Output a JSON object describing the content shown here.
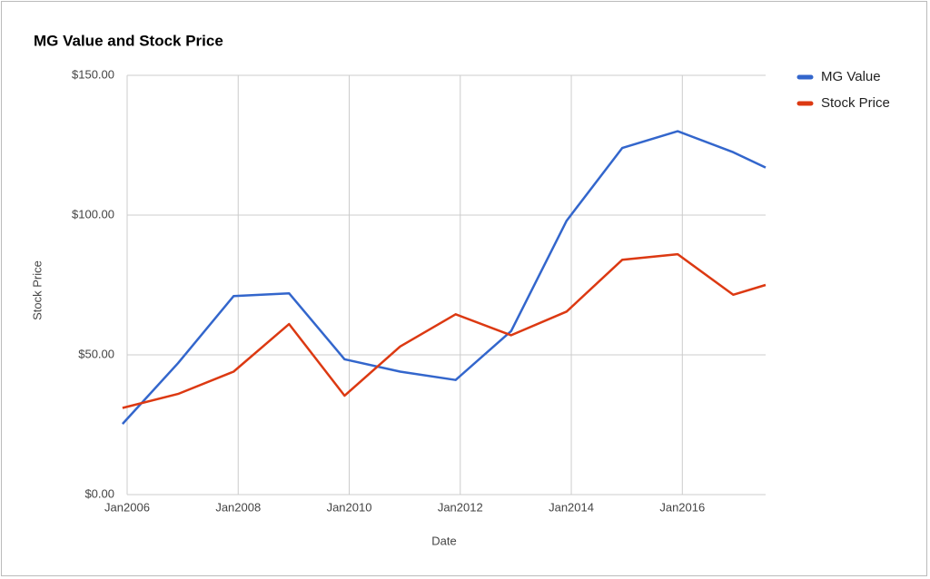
{
  "chart_data": {
    "type": "line",
    "title": "MG Value and Stock Price",
    "x_label": "Date",
    "y_label": "Stock Price",
    "x": [
      "2005-12",
      "2006-12",
      "2007-12",
      "2008-12",
      "2009-12",
      "2010-12",
      "2011-12",
      "2012-12",
      "2013-12",
      "2014-12",
      "2015-12",
      "2016-12",
      "2017-07"
    ],
    "series": [
      {
        "name": "MG Value",
        "color": "#3366cc",
        "values": [
          25.3,
          47,
          71,
          72,
          48.4,
          44,
          41,
          58.5,
          98,
          124,
          130,
          122.5,
          117
        ]
      },
      {
        "name": "Stock Price",
        "color": "#dc3912",
        "values": [
          31,
          36,
          44,
          61,
          35.4,
          53,
          64.5,
          57,
          65.5,
          84,
          86,
          71.5,
          75
        ]
      }
    ],
    "xlim": [
      "2006-01",
      "2017-07"
    ],
    "xticks": [
      {
        "value": "2006-01",
        "label": "Jan2006"
      },
      {
        "value": "2008-01",
        "label": "Jan2008"
      },
      {
        "value": "2010-01",
        "label": "Jan2010"
      },
      {
        "value": "2012-01",
        "label": "Jan2012"
      },
      {
        "value": "2014-01",
        "label": "Jan2014"
      },
      {
        "value": "2016-01",
        "label": "Jan2016"
      }
    ],
    "ylim": [
      0,
      150
    ],
    "yticks": [
      {
        "value": 0,
        "label": "$0.00"
      },
      {
        "value": 50,
        "label": "$50.00"
      },
      {
        "value": 100,
        "label": "$100.00"
      },
      {
        "value": 150,
        "label": "$150.00"
      }
    ],
    "grid": true,
    "legend": "right"
  }
}
